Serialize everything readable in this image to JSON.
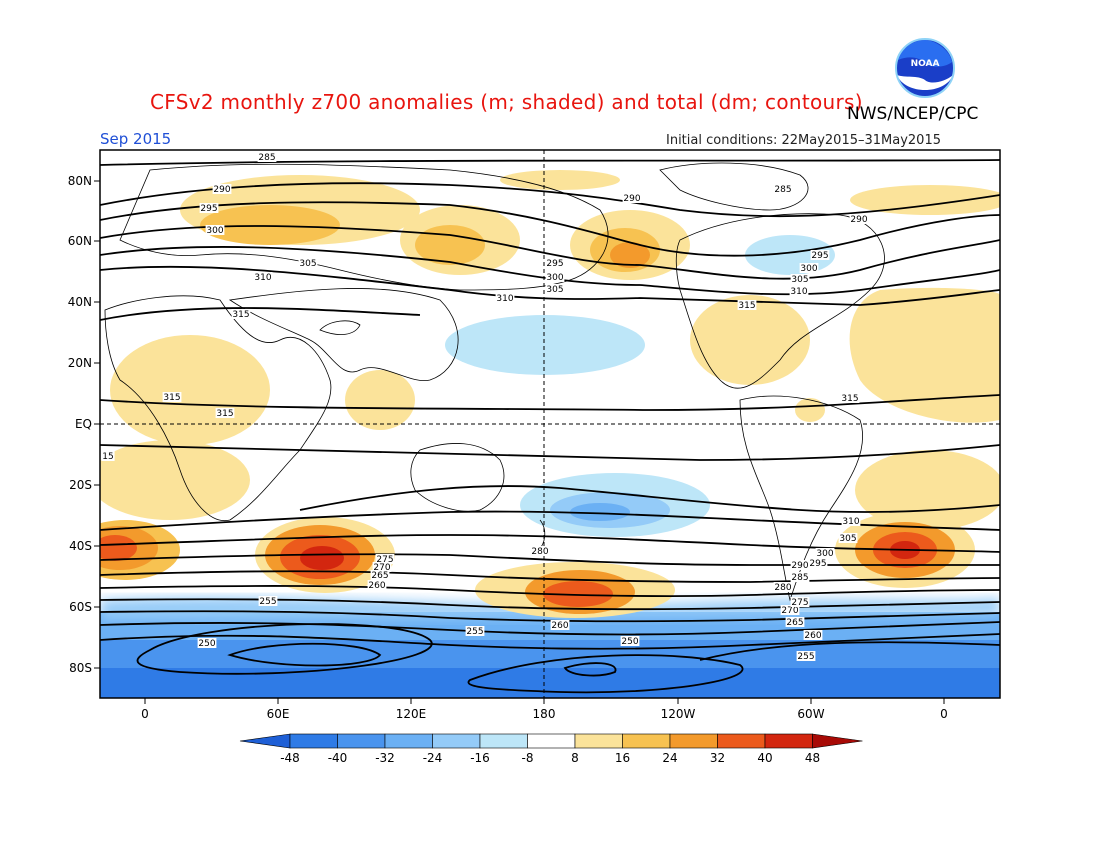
{
  "header": {
    "title": "CFSv2 monthly z700 anomalies (m; shaded) and total (dm; contours)",
    "agency": "NWS/NCEP/CPC",
    "month": "Sep 2015",
    "initial_conditions": "Initial conditions: 22May2015–31May2015",
    "logo_text": "NOAA"
  },
  "axes": {
    "lat_ticks": [
      "80N",
      "60N",
      "40N",
      "20N",
      "EQ",
      "20S",
      "40S",
      "60S",
      "80S"
    ],
    "lon_ticks": [
      "0",
      "60E",
      "120E",
      "180",
      "120W",
      "60W",
      "0"
    ]
  },
  "contour_labels": [
    "285",
    "290",
    "295",
    "300",
    "305",
    "310",
    "315",
    "315",
    "315",
    "310",
    "305",
    "300",
    "295",
    "290",
    "285",
    "280",
    "275",
    "270",
    "265",
    "260",
    "255",
    "250",
    "255",
    "260",
    "250",
    "255",
    "260",
    "265",
    "270",
    "275",
    "280",
    "285",
    "290",
    "295",
    "300",
    "305",
    "310",
    "315",
    "315",
    "310",
    "305",
    "300",
    "295",
    "290",
    "15"
  ],
  "colorbar": {
    "ticks": [
      "-48",
      "-40",
      "-32",
      "-24",
      "-16",
      "-8",
      "8",
      "16",
      "24",
      "32",
      "40",
      "48"
    ],
    "colors": [
      "#1e5fd6",
      "#2f7be6",
      "#4a94ee",
      "#6bb0f4",
      "#94cbf8",
      "#bde6f8",
      "#ffffff",
      "#fbe39a",
      "#f7c251",
      "#f39a2c",
      "#ec5a1c",
      "#d3260f",
      "#a80a06"
    ]
  }
}
